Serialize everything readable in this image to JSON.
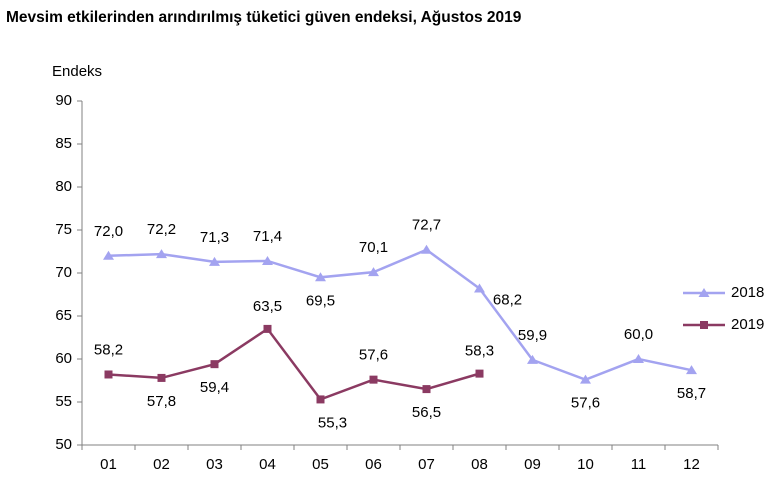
{
  "chart_data": {
    "type": "line",
    "title": "Mevsim etkilerinden arındırılmış tüketici güven endeksi, Ağustos 2019",
    "y_axis_label": "Endeks",
    "categories": [
      "01",
      "02",
      "03",
      "04",
      "05",
      "06",
      "07",
      "08",
      "09",
      "10",
      "11",
      "12"
    ],
    "series": [
      {
        "name": "2018",
        "color": "#a3a3f0",
        "marker": "triangle",
        "values": [
          72.0,
          72.2,
          71.3,
          71.4,
          69.5,
          70.1,
          72.7,
          68.2,
          59.9,
          57.6,
          60.0,
          58.7
        ],
        "value_labels": [
          "72,0",
          "72,2",
          "71,3",
          "71,4",
          "69,5",
          "70,1",
          "72,7",
          "68,2",
          "59,9",
          "57,6",
          "60,0",
          "58,7"
        ]
      },
      {
        "name": "2019",
        "color": "#8b3a62",
        "marker": "square",
        "values": [
          58.2,
          57.8,
          59.4,
          63.5,
          55.3,
          57.6,
          56.5,
          58.3,
          null,
          null,
          null,
          null
        ],
        "value_labels": [
          "58,2",
          "57,8",
          "59,4",
          "63,5",
          "55,3",
          "57,6",
          "56,5",
          "58,3",
          null,
          null,
          null,
          null
        ]
      }
    ],
    "ylim": [
      50,
      90
    ],
    "yticks": [
      50,
      55,
      60,
      65,
      70,
      75,
      80,
      85,
      90
    ],
    "grid": false,
    "legend": "right"
  }
}
